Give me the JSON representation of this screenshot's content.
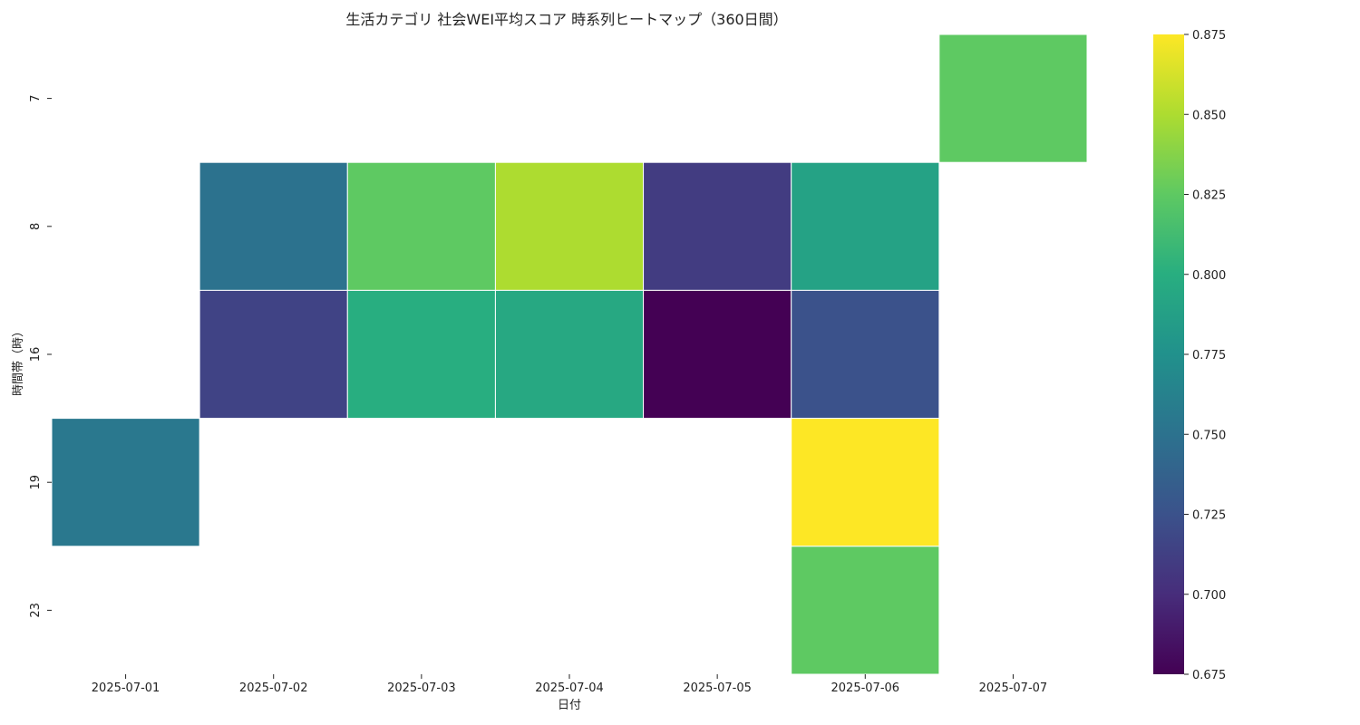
{
  "chart_data": {
    "type": "heatmap",
    "title": "生活カテゴリ 社会WEI平均スコア 時系列ヒートマップ（360日間）",
    "xlabel": "日付",
    "ylabel": "時間帯（時）",
    "x": [
      "2025-07-01",
      "2025-07-02",
      "2025-07-03",
      "2025-07-04",
      "2025-07-05",
      "2025-07-06",
      "2025-07-07"
    ],
    "y": [
      "7",
      "8",
      "16",
      "19",
      "23"
    ],
    "values": [
      [
        null,
        null,
        null,
        null,
        null,
        null,
        0.825
      ],
      [
        null,
        0.75,
        0.825,
        0.85,
        0.71,
        0.79,
        null
      ],
      [
        null,
        0.715,
        0.8,
        0.795,
        0.675,
        0.725,
        null
      ],
      [
        0.755,
        null,
        null,
        null,
        null,
        0.875,
        null
      ],
      [
        null,
        null,
        null,
        null,
        null,
        0.825,
        null
      ]
    ],
    "colormap": "viridis",
    "colorbar": {
      "range": [
        0.675,
        0.875
      ],
      "ticks": [
        "0.675",
        "0.700",
        "0.725",
        "0.750",
        "0.775",
        "0.800",
        "0.825",
        "0.850",
        "0.875"
      ]
    },
    "legend": "colorbar-right",
    "grid": false
  }
}
